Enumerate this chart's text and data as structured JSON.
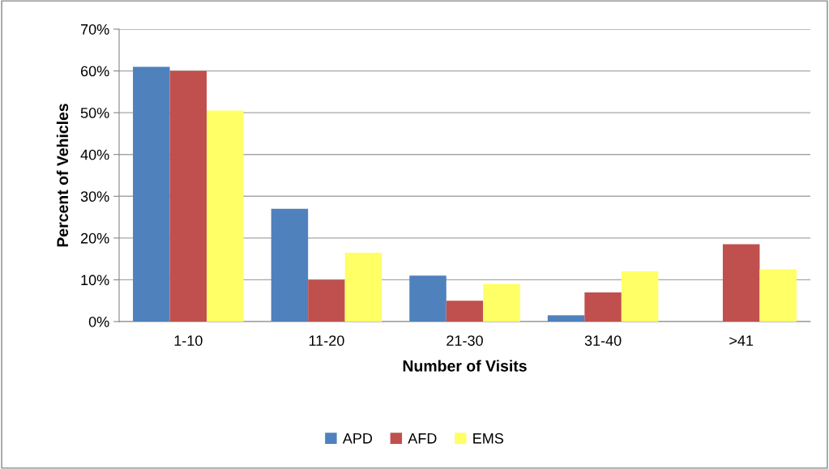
{
  "chart_data": {
    "type": "bar",
    "xlabel": "Number of Visits",
    "ylabel": "Percent of Vehicles",
    "categories": [
      "1-10",
      "11-20",
      "21-30",
      "31-40",
      ">41"
    ],
    "series": [
      {
        "name": "APD",
        "color": "#4f81bd",
        "values": [
          61,
          27,
          11,
          1.5,
          0
        ]
      },
      {
        "name": "AFD",
        "color": "#c0504d",
        "values": [
          60,
          10,
          5,
          7,
          18.5
        ]
      },
      {
        "name": "EMS",
        "color": "#ffff66",
        "values": [
          50.5,
          16.5,
          9,
          12,
          12.5
        ]
      }
    ],
    "ylim": [
      0,
      70
    ],
    "yticks": [
      {
        "value": 0,
        "label": "0%"
      },
      {
        "value": 10,
        "label": "10%"
      },
      {
        "value": 20,
        "label": "20%"
      },
      {
        "value": 30,
        "label": "30%"
      },
      {
        "value": 40,
        "label": "40%"
      },
      {
        "value": 50,
        "label": "50%"
      },
      {
        "value": 60,
        "label": "60%"
      },
      {
        "value": 70,
        "label": "70%"
      }
    ],
    "grid": "y",
    "legend": "bottom"
  }
}
